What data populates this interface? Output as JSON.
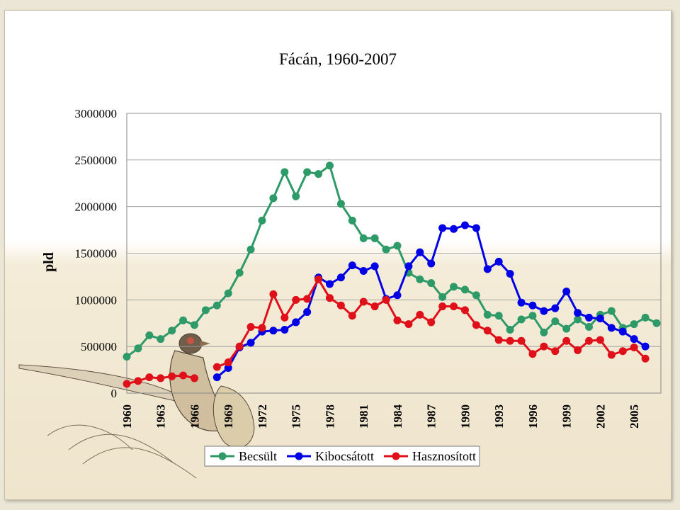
{
  "chart_data": {
    "type": "line",
    "title": "Fácán, 1960-2007",
    "xlabel": "",
    "ylabel": "pld",
    "ylim": [
      0,
      3000000
    ],
    "yticks": [
      0,
      500000,
      1000000,
      1500000,
      2000000,
      2500000,
      3000000
    ],
    "xticks": [
      "1960",
      "1963",
      "1966",
      "1969",
      "1972",
      "1975",
      "1978",
      "1981",
      "1984",
      "1987",
      "1990",
      "1993",
      "1996",
      "1999",
      "2002",
      "2005"
    ],
    "x": [
      1960,
      1961,
      1962,
      1963,
      1964,
      1965,
      1966,
      1967,
      1968,
      1969,
      1970,
      1971,
      1972,
      1973,
      1974,
      1975,
      1976,
      1977,
      1978,
      1979,
      1980,
      1981,
      1982,
      1983,
      1984,
      1985,
      1986,
      1987,
      1988,
      1989,
      1990,
      1991,
      1992,
      1993,
      1994,
      1995,
      1996,
      1997,
      1998,
      1999,
      2000,
      2001,
      2002,
      2003,
      2004,
      2005,
      2006,
      2007
    ],
    "grid": true,
    "legend_position": "bottom",
    "series": [
      {
        "name": "Becsült",
        "color": "#2e9a68",
        "values": [
          390000,
          480000,
          620000,
          580000,
          670000,
          780000,
          730000,
          890000,
          940000,
          1070000,
          1290000,
          1540000,
          1850000,
          2090000,
          2370000,
          2110000,
          2370000,
          2350000,
          2440000,
          2030000,
          1850000,
          1660000,
          1660000,
          1540000,
          1580000,
          1290000,
          1220000,
          1180000,
          1030000,
          1140000,
          1110000,
          1050000,
          840000,
          830000,
          680000,
          790000,
          830000,
          650000,
          770000,
          690000,
          790000,
          710000,
          840000,
          880000,
          700000,
          740000,
          810000,
          750000
        ]
      },
      {
        "name": "Kibocsátott",
        "color": "#0000e6",
        "values": [
          null,
          null,
          null,
          null,
          null,
          null,
          null,
          null,
          170000,
          270000,
          490000,
          540000,
          660000,
          670000,
          680000,
          760000,
          870000,
          1240000,
          1170000,
          1240000,
          1370000,
          1310000,
          1360000,
          1010000,
          1050000,
          1360000,
          1510000,
          1390000,
          1770000,
          1760000,
          1800000,
          1770000,
          1330000,
          1410000,
          1280000,
          970000,
          940000,
          880000,
          910000,
          1090000,
          860000,
          810000,
          800000,
          700000,
          660000,
          580000,
          500000,
          null
        ]
      },
      {
        "name": "Hasznosított",
        "color": "#e0101a",
        "values": [
          100000,
          130000,
          170000,
          160000,
          180000,
          190000,
          160000,
          null,
          280000,
          330000,
          500000,
          710000,
          700000,
          1060000,
          810000,
          1000000,
          1010000,
          1220000,
          1020000,
          940000,
          830000,
          980000,
          930000,
          1000000,
          780000,
          740000,
          840000,
          760000,
          930000,
          930000,
          890000,
          730000,
          670000,
          570000,
          560000,
          560000,
          420000,
          500000,
          450000,
          560000,
          460000,
          560000,
          570000,
          410000,
          450000,
          490000,
          370000,
          null
        ]
      }
    ]
  }
}
